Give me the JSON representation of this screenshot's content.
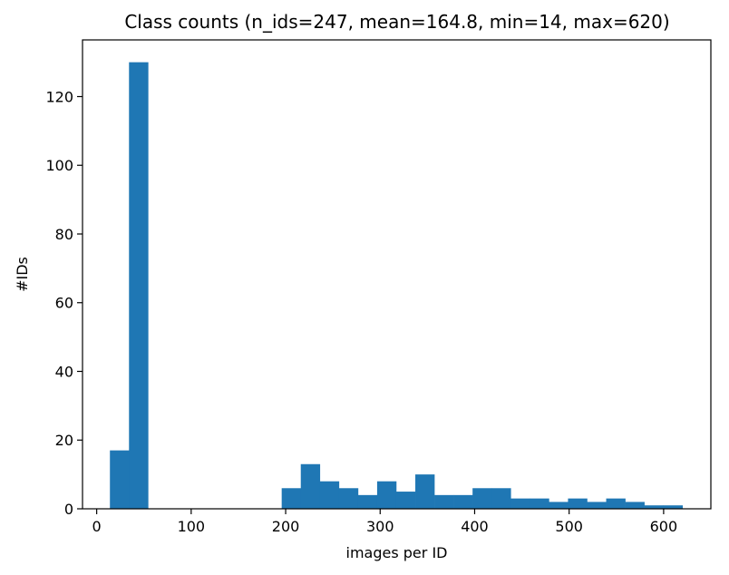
{
  "chart_data": {
    "type": "bar",
    "title": "Class counts (n_ids=247, mean=164.8, min=14, max=620)",
    "xlabel": "images per ID",
    "ylabel": "#IDs",
    "xlim": [
      -15,
      650
    ],
    "ylim": [
      0,
      136.5
    ],
    "xticks": [
      0,
      100,
      200,
      300,
      400,
      500,
      600
    ],
    "yticks": [
      0,
      20,
      40,
      60,
      80,
      100,
      120
    ],
    "grid": false,
    "bar_color": "#1f77b4",
    "bin_start": 14,
    "bin_width": 20.2,
    "values": [
      17,
      130,
      0,
      0,
      0,
      0,
      0,
      0,
      0,
      6,
      13,
      8,
      6,
      4,
      8,
      5,
      10,
      4,
      4,
      6,
      6,
      3,
      3,
      2,
      3,
      2,
      3,
      2,
      1,
      1
    ]
  }
}
